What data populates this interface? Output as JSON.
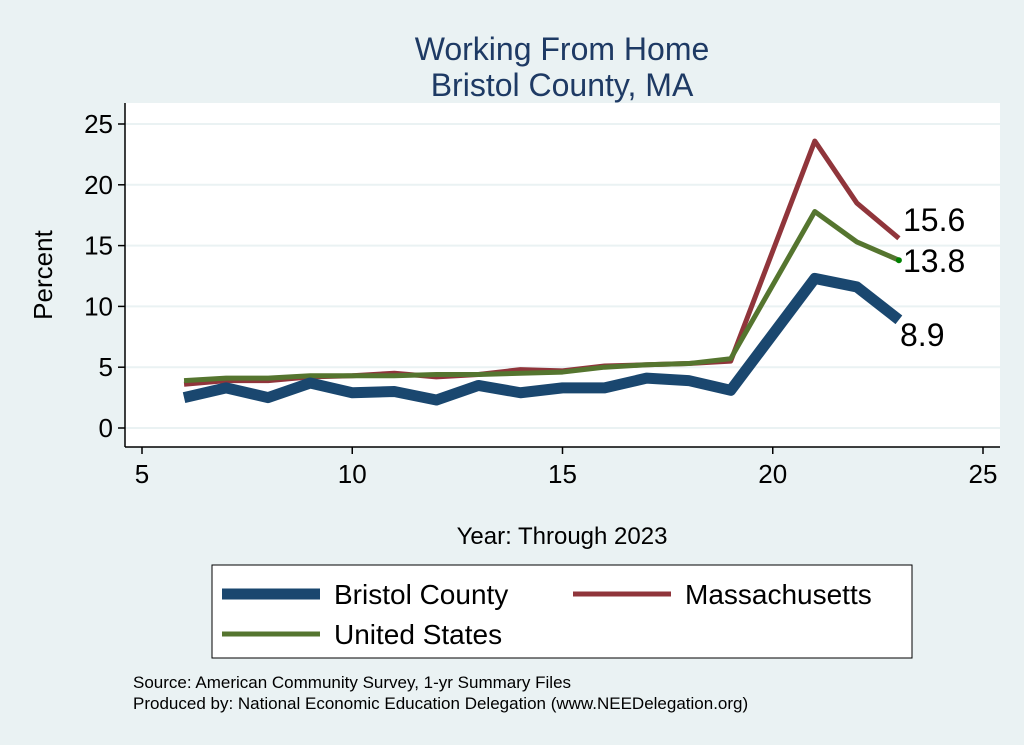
{
  "chart_data": {
    "type": "line",
    "title": "Working From Home",
    "subtitle": "Bristol County, MA",
    "xlabel": "Year: Through 2023",
    "ylabel": "Percent",
    "xlim": [
      5,
      25
    ],
    "ylim": [
      0,
      25
    ],
    "xticks": [
      5,
      10,
      15,
      20,
      25
    ],
    "yticks": [
      0,
      5,
      10,
      15,
      20,
      25
    ],
    "grid": true,
    "legend_position": "bottom",
    "x": [
      6,
      7,
      8,
      9,
      10,
      11,
      12,
      13,
      14,
      15,
      16,
      17,
      18,
      19,
      21,
      22,
      23
    ],
    "series": [
      {
        "name": "Bristol County",
        "color": "#1a476f",
        "width": 11,
        "end_label": "8.9",
        "values": [
          2.5,
          3.3,
          2.5,
          3.7,
          2.9,
          3.0,
          2.3,
          3.5,
          2.9,
          3.3,
          3.3,
          4.1,
          3.9,
          3.1,
          12.3,
          11.6,
          8.9
        ]
      },
      {
        "name": "Massachusetts",
        "color": "#90353b",
        "width": 5,
        "end_label": "15.6",
        "values": [
          3.6,
          3.9,
          3.9,
          4.2,
          4.3,
          4.5,
          4.2,
          4.4,
          4.8,
          4.7,
          5.1,
          5.2,
          5.3,
          5.5,
          23.6,
          18.5,
          15.6
        ]
      },
      {
        "name": "United States",
        "color": "#55752f",
        "width": 5,
        "end_label": "13.8",
        "values": [
          3.9,
          4.1,
          4.1,
          4.3,
          4.3,
          4.3,
          4.4,
          4.4,
          4.5,
          4.6,
          5.0,
          5.2,
          5.3,
          5.7,
          17.8,
          15.3,
          13.8
        ]
      }
    ],
    "notes": [
      "Source: American Community Survey, 1-yr Summary Files",
      "Produced by: National Economic Education Delegation (www.NEEDelegation.org)"
    ]
  }
}
